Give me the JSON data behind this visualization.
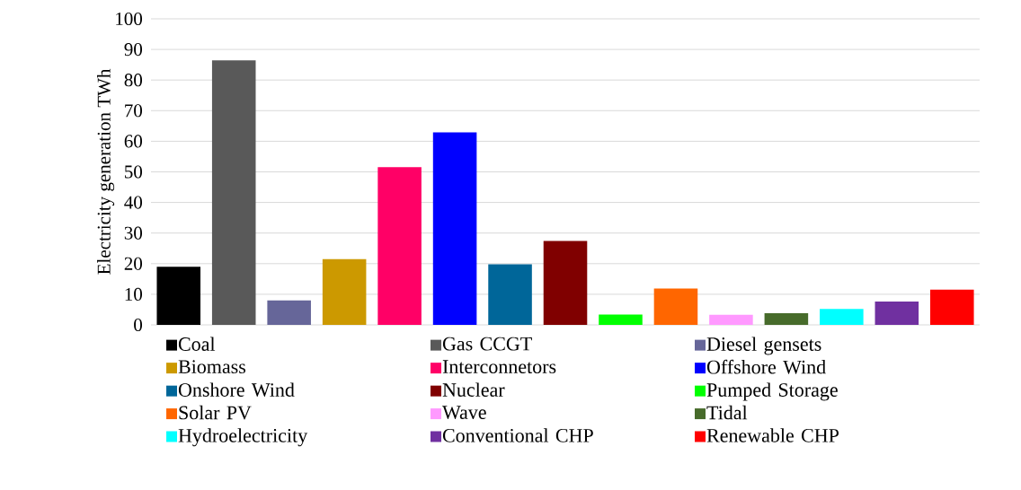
{
  "chart_data": {
    "type": "bar",
    "ylabel": "Electricity generation TWh",
    "categories": [
      null,
      null,
      null,
      null,
      null,
      null,
      null,
      null,
      null,
      null,
      null,
      null,
      null,
      null,
      null
    ],
    "series": [
      {
        "name": "Coal",
        "color": "#000000",
        "values": [
          19.0,
          null,
          null,
          null,
          null,
          null,
          null,
          null,
          null,
          null,
          null,
          null,
          null,
          null,
          null
        ]
      },
      {
        "name": "Gas CCGT",
        "color": "#595959",
        "values": [
          null,
          86.4,
          null,
          null,
          null,
          null,
          null,
          null,
          null,
          null,
          null,
          null,
          null,
          null,
          null
        ]
      },
      {
        "name": "Diesel gensets",
        "color": "#666699",
        "values": [
          null,
          null,
          8.0,
          null,
          null,
          null,
          null,
          null,
          null,
          null,
          null,
          null,
          null,
          null,
          null
        ]
      },
      {
        "name": "Biomass",
        "color": "#cc9900",
        "values": [
          null,
          null,
          null,
          21.5,
          null,
          null,
          null,
          null,
          null,
          null,
          null,
          null,
          null,
          null,
          null
        ]
      },
      {
        "name": "Interconnetors",
        "color": "#ff0066",
        "values": [
          null,
          null,
          null,
          null,
          51.5,
          null,
          null,
          null,
          null,
          null,
          null,
          null,
          null,
          null,
          null
        ]
      },
      {
        "name": "Offshore Wind",
        "color": "#0000ff",
        "values": [
          null,
          null,
          null,
          null,
          null,
          62.9,
          null,
          null,
          null,
          null,
          null,
          null,
          null,
          null,
          null
        ]
      },
      {
        "name": "Onshore Wind",
        "color": "#006699",
        "values": [
          null,
          null,
          null,
          null,
          null,
          null,
          19.8,
          null,
          null,
          null,
          null,
          null,
          null,
          null,
          null
        ]
      },
      {
        "name": "Nuclear",
        "color": "#800000",
        "values": [
          null,
          null,
          null,
          null,
          null,
          null,
          null,
          27.4,
          null,
          null,
          null,
          null,
          null,
          null,
          null
        ]
      },
      {
        "name": "Pumped Storage",
        "color": "#00ff00",
        "values": [
          null,
          null,
          null,
          null,
          null,
          null,
          null,
          null,
          3.4,
          null,
          null,
          null,
          null,
          null,
          null
        ]
      },
      {
        "name": "Solar PV",
        "color": "#ff6600",
        "values": [
          null,
          null,
          null,
          null,
          null,
          null,
          null,
          null,
          null,
          11.9,
          null,
          null,
          null,
          null,
          null
        ]
      },
      {
        "name": "Wave",
        "color": "#ff99ff",
        "values": [
          null,
          null,
          null,
          null,
          null,
          null,
          null,
          null,
          null,
          null,
          3.3,
          null,
          null,
          null,
          null
        ]
      },
      {
        "name": "Tidal",
        "color": "#476b2b",
        "values": [
          null,
          null,
          null,
          null,
          null,
          null,
          null,
          null,
          null,
          null,
          null,
          3.8,
          null,
          null,
          null
        ]
      },
      {
        "name": "Hydroelectricity",
        "color": "#00ffff",
        "values": [
          null,
          null,
          null,
          null,
          null,
          null,
          null,
          null,
          null,
          null,
          null,
          null,
          5.2,
          null,
          null
        ]
      },
      {
        "name": "Conventional CHP",
        "color": "#7030a0",
        "values": [
          null,
          null,
          null,
          null,
          null,
          null,
          null,
          null,
          null,
          null,
          null,
          null,
          null,
          7.6,
          null
        ]
      },
      {
        "name": "Renewable CHP",
        "color": "#ff0000",
        "values": [
          null,
          null,
          null,
          null,
          null,
          null,
          null,
          null,
          null,
          null,
          null,
          null,
          null,
          null,
          11.5
        ]
      }
    ],
    "ylim": [
      0,
      100
    ],
    "yticks": [
      0,
      10,
      20,
      30,
      40,
      50,
      60,
      70,
      80,
      90,
      100
    ],
    "grid": "y",
    "legend": "bottom"
  }
}
